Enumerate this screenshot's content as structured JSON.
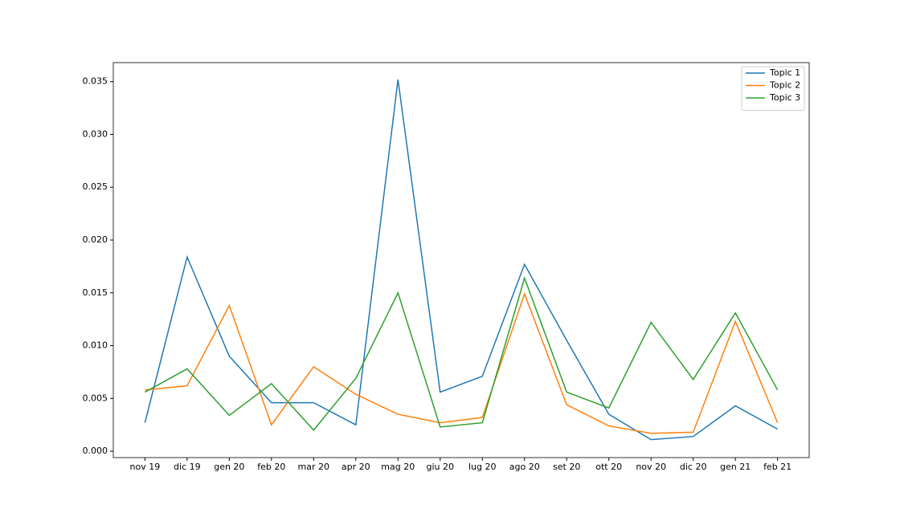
{
  "chart_data": {
    "type": "line",
    "categories": [
      "nov 19",
      "dic 19",
      "gen 20",
      "feb 20",
      "mar 20",
      "apr 20",
      "mag 20",
      "giu 20",
      "lug 20",
      "ago 20",
      "set 20",
      "ott 20",
      "nov 20",
      "dic 20",
      "gen 21",
      "feb 21"
    ],
    "series": [
      {
        "name": "Topic 1",
        "color": "#1f77b4",
        "values": [
          0.0027,
          0.0184,
          0.009,
          0.0046,
          0.0046,
          0.0025,
          0.0352,
          0.0056,
          0.0071,
          0.0177,
          0.0105,
          0.0035,
          0.0011,
          0.0014,
          0.0043,
          0.0021
        ]
      },
      {
        "name": "Topic 2",
        "color": "#ff7f0e",
        "values": [
          0.0058,
          0.0062,
          0.0138,
          0.0025,
          0.008,
          0.0054,
          0.0035,
          0.0027,
          0.0032,
          0.0149,
          0.0044,
          0.0024,
          0.0017,
          0.0018,
          0.0123,
          0.0027
        ]
      },
      {
        "name": "Topic 3",
        "color": "#2ca02c",
        "values": [
          0.0056,
          0.0078,
          0.0034,
          0.0064,
          0.002,
          0.0069,
          0.015,
          0.0023,
          0.0027,
          0.0164,
          0.0056,
          0.0041,
          0.0122,
          0.0068,
          0.0131,
          0.0058
        ]
      }
    ],
    "ylim": [
      -0.0006,
      0.0368
    ],
    "yticks": [
      {
        "value": 0,
        "label": "0.000"
      },
      {
        "value": 0.005,
        "label": "0.005"
      },
      {
        "value": 0.01,
        "label": "0.010"
      },
      {
        "value": 0.015,
        "label": "0.015"
      },
      {
        "value": 0.02,
        "label": "0.020"
      },
      {
        "value": 0.025,
        "label": "0.025"
      },
      {
        "value": 0.03,
        "label": "0.030"
      },
      {
        "value": 0.035,
        "label": "0.035"
      }
    ],
    "grid": false,
    "legend": "upper right"
  }
}
